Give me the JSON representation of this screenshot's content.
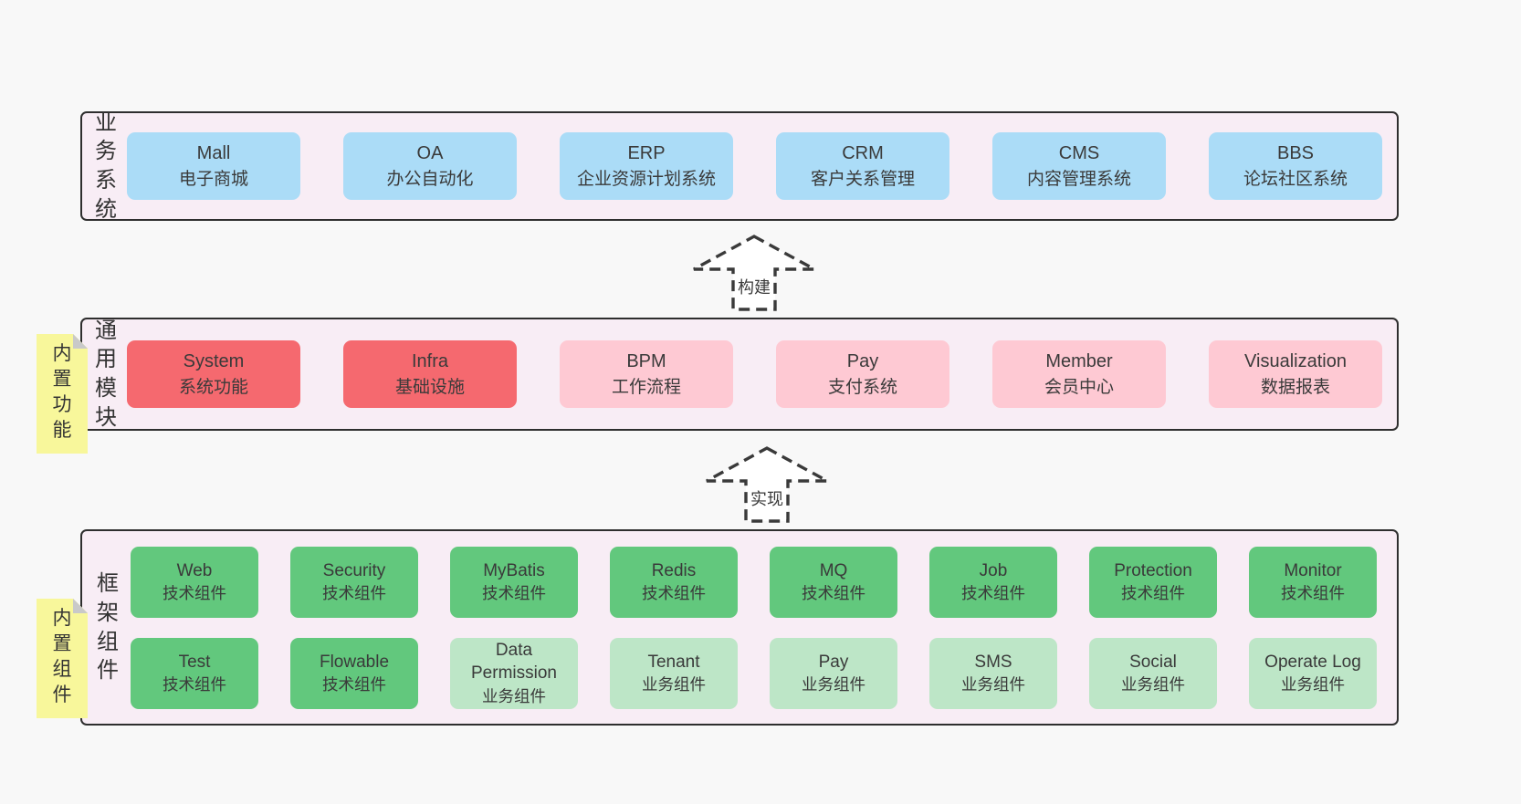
{
  "diagram_title": "framework-architecture-diagram",
  "colors": {
    "page_background": "#f8f8f8",
    "panel_fill": "#f8edf5",
    "panel_border": "#2e2e2e",
    "business_box": "#abdcf7",
    "core_module_box": "#f5696f",
    "optional_module_box": "#fec9d3",
    "tech_component_box": "#62c87d",
    "biz_component_box": "#bde6c7",
    "sticky_note": "#f8f79b",
    "sticky_fold": "#c9c9c9",
    "text": "#3a3a3a"
  },
  "sections": [
    {
      "label": "业务系统",
      "sticky": null,
      "rows": [
        [
          {
            "en": "Mall",
            "zh": "电子商城",
            "type": "blue"
          },
          {
            "en": "OA",
            "zh": "办公自动化",
            "type": "blue"
          },
          {
            "en": "ERP",
            "zh": "企业资源计划系统",
            "type": "blue"
          },
          {
            "en": "CRM",
            "zh": "客户关系管理",
            "type": "blue"
          },
          {
            "en": "CMS",
            "zh": "内容管理系统",
            "type": "blue"
          },
          {
            "en": "BBS",
            "zh": "论坛社区系统",
            "type": "blue"
          }
        ]
      ]
    },
    {
      "label": "通用模块",
      "sticky": "内置功能",
      "rows": [
        [
          {
            "en": "System",
            "zh": "系统功能",
            "type": "red"
          },
          {
            "en": "Infra",
            "zh": "基础设施",
            "type": "red"
          },
          {
            "en": "BPM",
            "zh": "工作流程",
            "type": "pink"
          },
          {
            "en": "Pay",
            "zh": "支付系统",
            "type": "pink"
          },
          {
            "en": "Member",
            "zh": "会员中心",
            "type": "pink"
          },
          {
            "en": "Visualization",
            "zh": "数据报表",
            "type": "pink"
          }
        ]
      ]
    },
    {
      "label": "框架组件",
      "sticky": "内置组件",
      "rows": [
        [
          {
            "en": "Web",
            "zh": "技术组件",
            "type": "green"
          },
          {
            "en": "Security",
            "zh": "技术组件",
            "type": "green"
          },
          {
            "en": "MyBatis",
            "zh": "技术组件",
            "type": "green"
          },
          {
            "en": "Redis",
            "zh": "技术组件",
            "type": "green"
          },
          {
            "en": "MQ",
            "zh": "技术组件",
            "type": "green"
          },
          {
            "en": "Job",
            "zh": "技术组件",
            "type": "green"
          },
          {
            "en": "Protection",
            "zh": "技术组件",
            "type": "green"
          },
          {
            "en": "Monitor",
            "zh": "技术组件",
            "type": "green"
          }
        ],
        [
          {
            "en": "Test",
            "zh": "技术组件",
            "type": "green"
          },
          {
            "en": "Flowable",
            "zh": "技术组件",
            "type": "green"
          },
          {
            "en": "Data Permission",
            "zh": "业务组件",
            "type": "green-light"
          },
          {
            "en": "Tenant",
            "zh": "业务组件",
            "type": "green-light"
          },
          {
            "en": "Pay",
            "zh": "业务组件",
            "type": "green-light"
          },
          {
            "en": "SMS",
            "zh": "业务组件",
            "type": "green-light"
          },
          {
            "en": "Social",
            "zh": "业务组件",
            "type": "green-light"
          },
          {
            "en": "Operate Log",
            "zh": "业务组件",
            "type": "green-light"
          }
        ]
      ]
    }
  ],
  "arrows": [
    {
      "label": "构建"
    },
    {
      "label": "实现"
    }
  ]
}
